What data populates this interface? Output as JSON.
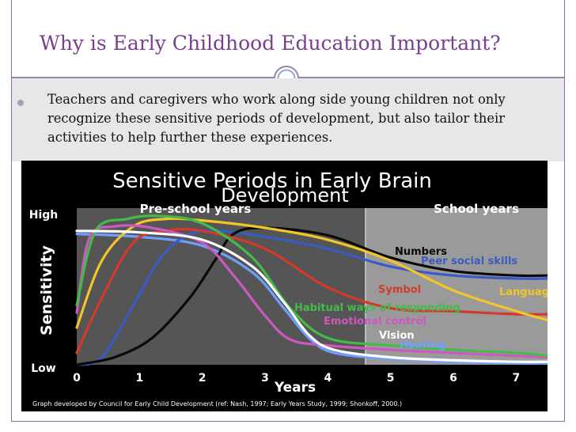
{
  "slide": {
    "title": "Why is Early Childhood Education Important?",
    "bullet": "Teachers and caregivers who work along side young children not only recognize these sensitive periods of development, but also tailor their activities  to help further these experiences."
  },
  "colors": {
    "title": "#7b3f8f",
    "accent_ring": "#8fa8d6",
    "preschool_panel": "#555555",
    "school_panel": "#9a9a9a"
  },
  "chart_data": {
    "type": "line",
    "title": "Sensitive Periods in Early Brain Development",
    "xlabel": "Years",
    "ylabel": "Sensitivity",
    "xlim": [
      0,
      7.5
    ],
    "ylim": [
      0,
      1
    ],
    "x_ticks": [
      "0",
      "1",
      "2",
      "3",
      "4",
      "5",
      "6",
      "7"
    ],
    "y_ticks": {
      "high": "High",
      "low": "Low"
    },
    "periods": [
      {
        "label": "Pre-school years",
        "from": 0,
        "to": 4.6
      },
      {
        "label": "School years",
        "from": 4.6,
        "to": 7.5
      }
    ],
    "credit": "Graph developed by Council for Early Child Development (ref: Nash, 1997; Early Years Study, 1999; Shonkoff, 2000.)",
    "series": [
      {
        "name": "Numbers",
        "color": "#0a0a0a",
        "points": [
          [
            0,
            0.0
          ],
          [
            0.6,
            0.05
          ],
          [
            1.2,
            0.18
          ],
          [
            1.8,
            0.45
          ],
          [
            2.2,
            0.7
          ],
          [
            2.5,
            0.88
          ],
          [
            3.0,
            0.92
          ],
          [
            4.0,
            0.87
          ],
          [
            5.0,
            0.72
          ],
          [
            6.0,
            0.63
          ],
          [
            7.0,
            0.6
          ],
          [
            7.5,
            0.6
          ]
        ]
      },
      {
        "name": "Peer social skills",
        "color": "#3b5bc4",
        "points": [
          [
            0,
            0.0
          ],
          [
            0.4,
            0.05
          ],
          [
            0.9,
            0.4
          ],
          [
            1.4,
            0.75
          ],
          [
            2.0,
            0.9
          ],
          [
            3.0,
            0.86
          ],
          [
            4.0,
            0.78
          ],
          [
            5.0,
            0.66
          ],
          [
            6.0,
            0.6
          ],
          [
            7.0,
            0.58
          ],
          [
            7.5,
            0.58
          ]
        ]
      },
      {
        "name": "Language",
        "color": "#f2c52a",
        "points": [
          [
            0,
            0.25
          ],
          [
            0.4,
            0.7
          ],
          [
            0.9,
            0.93
          ],
          [
            1.4,
            0.98
          ],
          [
            2.0,
            0.97
          ],
          [
            3.0,
            0.92
          ],
          [
            4.0,
            0.84
          ],
          [
            5.0,
            0.7
          ],
          [
            6.0,
            0.5
          ],
          [
            7.0,
            0.36
          ],
          [
            7.5,
            0.3
          ]
        ]
      },
      {
        "name": "Symbol",
        "color": "#d43a2a",
        "points": [
          [
            0,
            0.08
          ],
          [
            0.4,
            0.45
          ],
          [
            0.9,
            0.82
          ],
          [
            1.4,
            0.9
          ],
          [
            2.0,
            0.9
          ],
          [
            3.0,
            0.78
          ],
          [
            4.0,
            0.52
          ],
          [
            5.0,
            0.38
          ],
          [
            6.0,
            0.36
          ],
          [
            7.0,
            0.34
          ],
          [
            7.5,
            0.34
          ]
        ]
      },
      {
        "name": "Habitual ways of responding",
        "color": "#44bb48",
        "points": [
          [
            0,
            0.4
          ],
          [
            0.3,
            0.9
          ],
          [
            0.8,
            0.98
          ],
          [
            1.3,
            1.0
          ],
          [
            2.0,
            0.95
          ],
          [
            2.8,
            0.72
          ],
          [
            3.4,
            0.38
          ],
          [
            4.0,
            0.18
          ],
          [
            5.0,
            0.13
          ],
          [
            6.0,
            0.1
          ],
          [
            7.0,
            0.08
          ],
          [
            7.5,
            0.06
          ]
        ]
      },
      {
        "name": "Emotional control",
        "color": "#cc58c0",
        "points": [
          [
            0,
            0.35
          ],
          [
            0.2,
            0.85
          ],
          [
            0.6,
            0.93
          ],
          [
            1.2,
            0.92
          ],
          [
            2.0,
            0.82
          ],
          [
            2.5,
            0.6
          ],
          [
            3.0,
            0.33
          ],
          [
            3.4,
            0.17
          ],
          [
            4.0,
            0.13
          ],
          [
            5.0,
            0.1
          ],
          [
            6.0,
            0.08
          ],
          [
            7.0,
            0.06
          ],
          [
            7.5,
            0.05
          ]
        ]
      },
      {
        "name": "Vision",
        "color": "#ffffff",
        "points": [
          [
            0,
            0.9
          ],
          [
            1.0,
            0.89
          ],
          [
            2.0,
            0.84
          ],
          [
            2.8,
            0.66
          ],
          [
            3.3,
            0.42
          ],
          [
            3.7,
            0.2
          ],
          [
            4.1,
            0.1
          ],
          [
            5.0,
            0.05
          ],
          [
            6.0,
            0.03
          ],
          [
            7.0,
            0.02
          ],
          [
            7.5,
            0.02
          ]
        ]
      },
      {
        "name": "Hearing",
        "color": "#6fa0ff",
        "points": [
          [
            0,
            0.88
          ],
          [
            1.0,
            0.86
          ],
          [
            2.0,
            0.8
          ],
          [
            2.8,
            0.62
          ],
          [
            3.3,
            0.38
          ],
          [
            3.7,
            0.18
          ],
          [
            4.1,
            0.08
          ],
          [
            5.0,
            0.04
          ],
          [
            6.0,
            0.02
          ],
          [
            7.0,
            0.01
          ],
          [
            7.5,
            0.01
          ]
        ]
      }
    ]
  }
}
